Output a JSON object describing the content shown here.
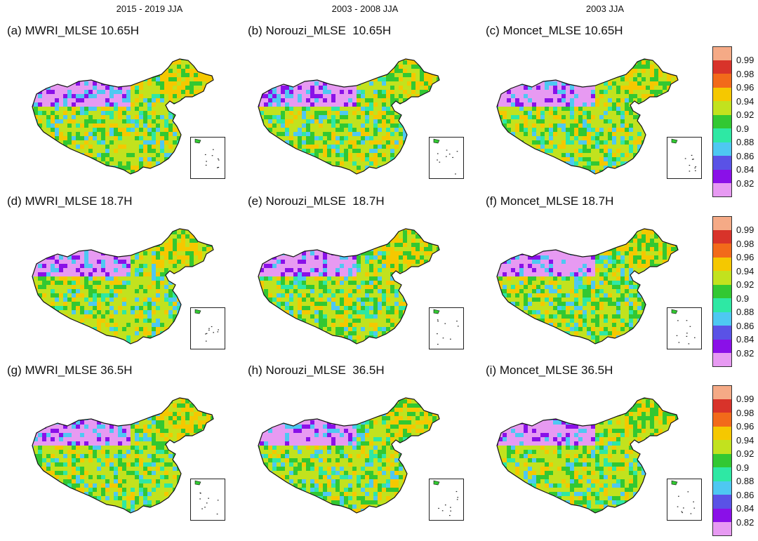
{
  "column_headers": [
    "2015 - 2019 JJA",
    "2003 - 2008 JJA",
    "2003 JJA"
  ],
  "panels": [
    {
      "title": "(a) MWRI_MLSE 10.65H"
    },
    {
      "title": "(b) Norouzi_MLSE  10.65H"
    },
    {
      "title": "(c) Moncet_MLSE 10.65H"
    },
    {
      "title": "(d) MWRI_MLSE 18.7H"
    },
    {
      "title": "(e) Norouzi_MLSE  18.7H"
    },
    {
      "title": "(f) Moncet_MLSE 18.7H"
    },
    {
      "title": "(g) MWRI_MLSE 36.5H"
    },
    {
      "title": "(h) Norouzi_MLSE  36.5H"
    },
    {
      "title": "(i) Moncet_MLSE 36.5H"
    }
  ],
  "colorbar": {
    "labels": [
      "0.99",
      "0.98",
      "0.96",
      "0.94",
      "0.92",
      "0.9",
      "0.88",
      "0.86",
      "0.84",
      "0.82"
    ],
    "colors": [
      "#f5aa86",
      "#d8332a",
      "#f26a1a",
      "#f5c800",
      "#c2e21e",
      "#32c832",
      "#2ee8a4",
      "#4ec8f2",
      "#5a52e6",
      "#8a10e8",
      "#e79af2"
    ]
  }
}
